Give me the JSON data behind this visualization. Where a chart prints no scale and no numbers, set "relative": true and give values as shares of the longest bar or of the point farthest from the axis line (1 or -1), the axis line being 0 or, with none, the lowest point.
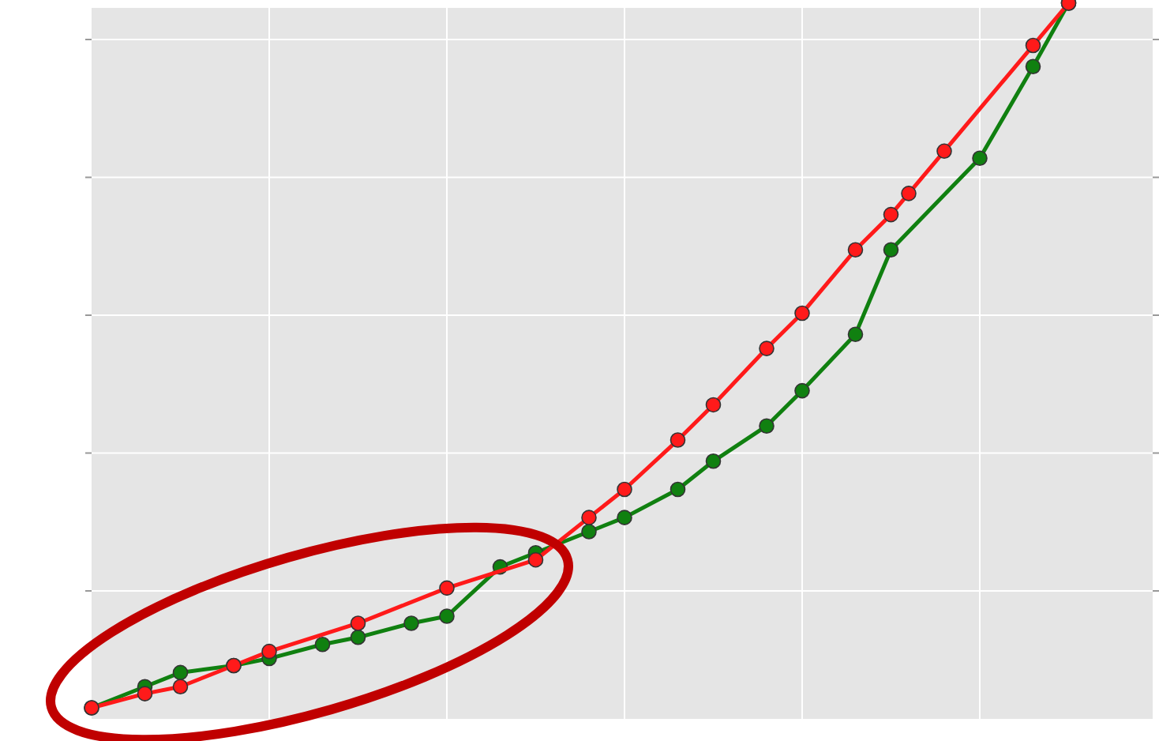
{
  "chart_data": {
    "type": "line",
    "relative": true,
    "grid": true,
    "marker": "circle",
    "line_style": "solid",
    "categories": [
      null,
      null,
      null,
      null,
      null,
      null,
      null,
      null,
      null,
      null,
      null,
      null,
      null,
      null,
      null,
      null,
      null,
      null,
      null,
      null,
      null,
      null,
      null,
      null,
      null,
      null,
      null,
      null,
      null,
      null,
      null,
      null,
      null,
      null,
      null,
      null,
      null,
      null,
      null,
      null,
      null,
      null,
      null,
      null,
      null,
      null,
      null,
      null,
      null,
      null,
      null,
      null,
      null,
      null,
      null,
      null,
      null,
      null,
      null,
      null
    ],
    "series": [
      {
        "color": "#108010",
        "values": [
          0,
          null,
          null,
          0.03,
          null,
          0.05,
          null,
          null,
          0.06,
          null,
          0.07,
          null,
          null,
          0.09,
          null,
          0.1,
          null,
          null,
          0.12,
          null,
          0.13,
          null,
          null,
          0.2,
          null,
          0.22,
          null,
          null,
          0.25,
          null,
          0.27,
          null,
          null,
          0.31,
          null,
          0.35,
          null,
          null,
          0.4,
          null,
          0.45,
          null,
          null,
          0.53,
          null,
          0.65,
          null,
          null,
          null,
          null,
          0.78,
          null,
          null,
          0.91,
          null,
          1,
          null,
          null,
          null,
          null
        ]
      },
      {
        "color": "#ff1a1a",
        "values": [
          0,
          null,
          null,
          0.02,
          null,
          0.03,
          null,
          null,
          0.06,
          null,
          0.08,
          null,
          null,
          null,
          null,
          0.12,
          null,
          null,
          null,
          null,
          0.17,
          null,
          null,
          null,
          null,
          0.21,
          null,
          null,
          0.27,
          null,
          0.31,
          null,
          null,
          0.38,
          null,
          0.43,
          null,
          null,
          0.51,
          null,
          0.56,
          null,
          null,
          0.65,
          null,
          0.7,
          0.73,
          null,
          0.79,
          null,
          null,
          null,
          null,
          0.94,
          null,
          1,
          null,
          null,
          null,
          null
        ]
      }
    ]
  }
}
